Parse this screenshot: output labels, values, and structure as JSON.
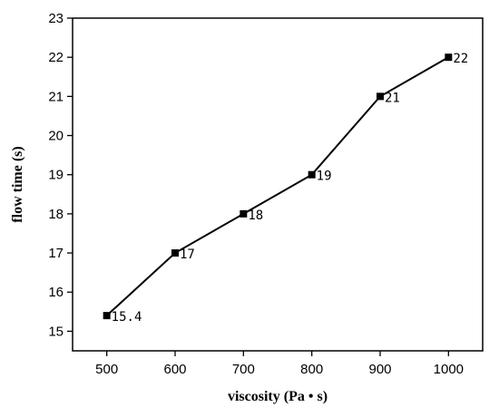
{
  "chart_data": {
    "type": "line",
    "title": "",
    "xlabel": "viscosity (Pa • s)",
    "ylabel": "flow time (s)",
    "xlim": [
      450,
      1050
    ],
    "ylim": [
      14.5,
      23
    ],
    "x_ticks": [
      500,
      600,
      700,
      800,
      900,
      1000
    ],
    "x_tick_labels": [
      "500",
      "600",
      "700",
      "800",
      "900",
      "1000"
    ],
    "y_ticks": [
      15,
      16,
      17,
      18,
      19,
      20,
      21,
      22,
      23
    ],
    "y_tick_labels": [
      "15",
      "16",
      "17",
      "18",
      "19",
      "20",
      "21",
      "22",
      "23"
    ],
    "grid": false,
    "legend": "none",
    "series": [
      {
        "x": [
          500,
          600,
          700,
          800,
          900,
          1000
        ],
        "y": [
          15.4,
          17,
          18,
          19,
          21,
          22
        ],
        "labels": [
          "15.4",
          "17",
          "18",
          "19",
          "21",
          "22"
        ],
        "marker": "square",
        "color": "#000000"
      }
    ]
  }
}
